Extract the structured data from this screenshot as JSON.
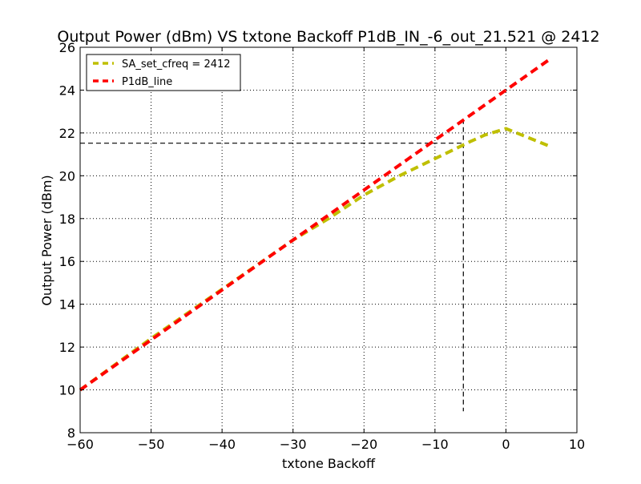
{
  "chart_data": {
    "type": "line",
    "title": "Output Power (dBm) VS txtone Backoff P1dB_IN_-6_out_21.521 @ 2412",
    "xlabel": "txtone Backoff",
    "ylabel": "Output Power (dBm)",
    "xlim": [
      -60,
      10
    ],
    "ylim": [
      8,
      26
    ],
    "xticks": [
      -60,
      -50,
      -40,
      -30,
      -20,
      -10,
      0,
      10
    ],
    "yticks": [
      8,
      10,
      12,
      14,
      16,
      18,
      20,
      22,
      24,
      26
    ],
    "xtick_labels": [
      "−60",
      "−50",
      "−40",
      "−30",
      "−20",
      "−10",
      "0",
      "10"
    ],
    "ytick_labels": [
      "8",
      "10",
      "12",
      "14",
      "16",
      "18",
      "20",
      "22",
      "24",
      "26"
    ],
    "grid": true,
    "legend_position": "top-left",
    "series": [
      {
        "name": "SA_set_cfreq = 2412",
        "color": "#bfbf00",
        "style": "dashed",
        "x": [
          -60,
          -50,
          -40,
          -30,
          -25,
          -20,
          -15,
          -10,
          -5,
          -3,
          0,
          3,
          6
        ],
        "y": [
          10.0,
          12.4,
          14.7,
          17.0,
          18.0,
          19.1,
          20.0,
          20.8,
          21.6,
          21.9,
          22.2,
          21.8,
          21.4
        ]
      },
      {
        "name": "P1dB_line",
        "color": "#ff0000",
        "style": "dashed",
        "x": [
          -60,
          6
        ],
        "y": [
          10.0,
          25.4
        ]
      }
    ],
    "reference_lines": {
      "p1db_in": -6,
      "p1db_out": 21.521,
      "vertical_bottom": 9,
      "color": "#000000"
    }
  }
}
